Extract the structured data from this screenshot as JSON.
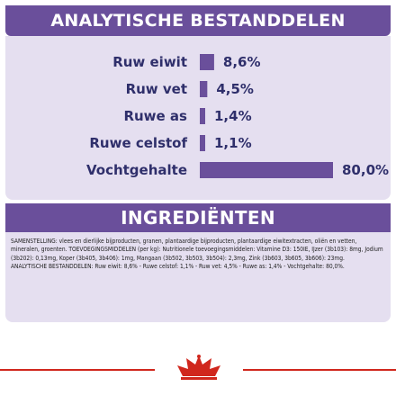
{
  "headers": {
    "analytics_title": "ANALYTISCHE BESTANDDELEN",
    "ingredients_title": "INGREDIËNTEN"
  },
  "chart_data": {
    "type": "bar",
    "orientation": "horizontal",
    "title": "ANALYTISCHE BESTANDDELEN",
    "categories": [
      "Ruw eiwit",
      "Ruw vet",
      "Ruwe as",
      "Ruwe celstof",
      "Vochtgehalte"
    ],
    "values": [
      8.6,
      4.5,
      1.4,
      1.1,
      80.0
    ],
    "value_labels": [
      "8,6%",
      "4,5%",
      "1,4%",
      "1,1%",
      "80,0%"
    ],
    "unit": "%",
    "xlim": [
      0,
      80
    ],
    "grid": false,
    "bar_color": "#6a4f9b"
  },
  "ingredients": {
    "composition": "SAMENSTELLING: vlees en dierlijke bijproducten, granen, plantaardige bijproducten, plantaardige eiwitextracten, oliën en vetten, mineralen, groenten. TOEVOEGINGSMIDDELEN (per kg): Nutritionele toevoegingsmiddelen: Vitamine D3: 150IE, IJzer (3b103): 8mg, Jodium (3b202): 0,13mg, Koper (3b405, 3b406): 1mg, Mangaan (3b502, 3b503, 3b504): 2,3mg, Zink (3b603, 3b605, 3b606): 23mg.",
    "analytics": "ANALYTISCHE BESTANDDELEN: Ruw eiwit: 8,6% - Ruwe celstof: 1,1% - Ruw vet: 4,5% - Ruwe as: 1,4% - Vochtgehalte: 80,0%."
  },
  "colors": {
    "brand_purple": "#6a4f9b",
    "pale_lavender": "#e5dff0",
    "text_navy": "#2f2f6b",
    "royal_canin_red": "#d0271d"
  },
  "logo": {
    "icon": "royal-canin-crown-icon"
  }
}
